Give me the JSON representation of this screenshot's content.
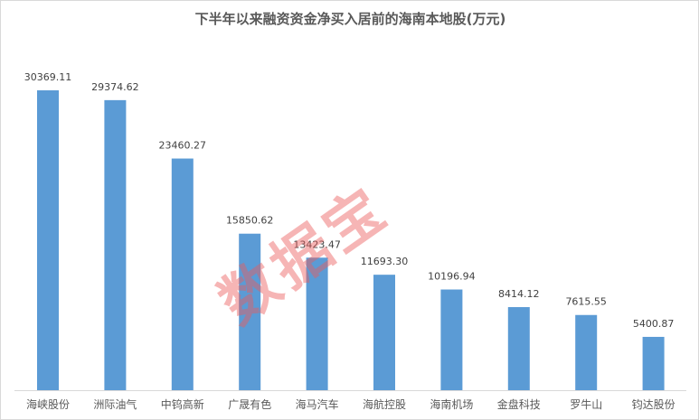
{
  "chart_data": {
    "type": "bar",
    "title": "下半年以来融资资金净买入居前的海南本地股(万元)",
    "categories": [
      "海峡股份",
      "洲际油气",
      "中钨高新",
      "广晟有色",
      "海马汽车",
      "海航控股",
      "海南机场",
      "金盘科技",
      "罗牛山",
      "钧达股份"
    ],
    "values": [
      30369.11,
      29374.62,
      23460.27,
      15850.62,
      13423.47,
      11693.3,
      10196.94,
      8414.12,
      7615.55,
      5400.87
    ],
    "value_labels": [
      "30369.11",
      "29374.62",
      "23460.27",
      "15850.62",
      "13423.47",
      "11693.30",
      "10196.94",
      "8414.12",
      "7615.55",
      "5400.87"
    ],
    "ylim": [
      0,
      30369.11
    ],
    "grid": false,
    "bar_color": "#5b9bd5"
  },
  "watermark": "数据宝"
}
